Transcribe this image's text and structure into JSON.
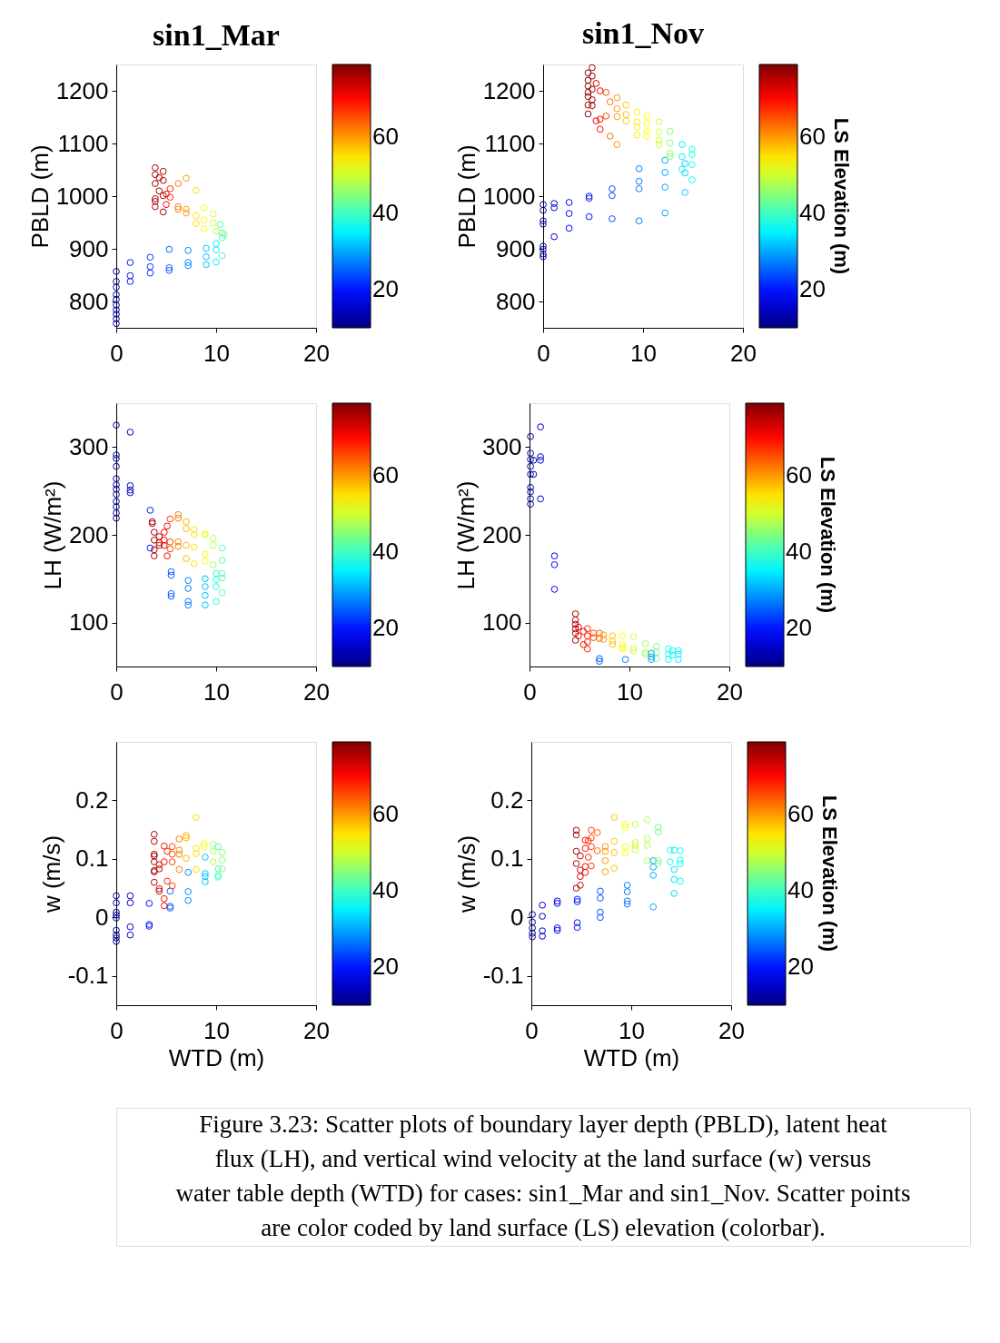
{
  "chart_data": [
    {
      "type": "scatter",
      "title": "sin1_Mar",
      "ylabel": "PBLD (m)",
      "marker": "circle",
      "xlim": [
        0,
        20
      ],
      "xticks": [
        0,
        10,
        20
      ],
      "ylim": [
        750,
        1250
      ],
      "yticks": [
        800,
        900,
        1000,
        1100,
        1200
      ],
      "clim": [
        10,
        79
      ],
      "cticks": [
        20,
        40,
        60
      ],
      "x": [
        0,
        0,
        0,
        0,
        0,
        0,
        0,
        0,
        0,
        0,
        1.4,
        1.4,
        1.4,
        3.4,
        3.4,
        3.4,
        5.3,
        5.3,
        5.3,
        7.2,
        7.2,
        7.2,
        9,
        9,
        9,
        10,
        10,
        10,
        10.6,
        10.6,
        10.6,
        10.4,
        10.8,
        9.7,
        9.7,
        8.8,
        8.8,
        8.8,
        10,
        8,
        8,
        8,
        7,
        7,
        7,
        6.2,
        6.2,
        6.2,
        5.4,
        5.4,
        5,
        5,
        3.9,
        3.9,
        3.9,
        3.9,
        3.9,
        3.9,
        4.3,
        4.3,
        4.7,
        4.7,
        4.7,
        4.7
      ],
      "values": [
        857,
        838,
        827,
        813,
        804,
        793,
        784,
        776,
        767,
        758,
        874,
        849,
        838,
        884,
        866,
        854,
        899,
        864,
        859,
        897,
        874,
        868,
        901,
        885,
        870,
        910,
        898,
        875,
        921,
        930,
        887,
        946,
        927,
        966,
        949,
        978,
        955,
        938,
        933,
        1011,
        963,
        948,
        1034,
        975,
        968,
        1024,
        980,
        975,
        1014,
        998,
        1004,
        984,
        1054,
        1041,
        1024,
        995,
        990,
        980,
        1035,
        1010,
        1047,
        1030,
        970,
        1001
      ],
      "cvalues": [
        12,
        12,
        12,
        12,
        12,
        12,
        12,
        12,
        12,
        12,
        20,
        20,
        20,
        22,
        22,
        22,
        25,
        25,
        25,
        28,
        28,
        28,
        32,
        32,
        32,
        35,
        35,
        35,
        40,
        40,
        40,
        42,
        45,
        50,
        50,
        52,
        52,
        52,
        48,
        55,
        55,
        55,
        60,
        60,
        60,
        62,
        62,
        62,
        68,
        68,
        70,
        70,
        76,
        76,
        76,
        76,
        76,
        76,
        76,
        76,
        76,
        76,
        76,
        76
      ]
    },
    {
      "type": "scatter",
      "title": "sin1_Nov",
      "ylabel": "PBLD (m)",
      "clabel": "LS Elevation (m)",
      "marker": "circle",
      "xlim": [
        0,
        20
      ],
      "xticks": [
        0,
        10,
        20
      ],
      "ylim": [
        750,
        1250
      ],
      "yticks": [
        800,
        900,
        1000,
        1100,
        1200
      ],
      "clim": [
        10,
        79
      ],
      "cticks": [
        20,
        40,
        60
      ],
      "x": [
        0,
        0,
        0,
        0,
        0,
        0,
        0,
        0,
        1.1,
        1.1,
        1.1,
        2.6,
        2.6,
        2.6,
        4.6,
        4.6,
        4.6,
        6.9,
        6.9,
        6.9,
        9.6,
        9.6,
        9.6,
        9.6,
        12.2,
        12.2,
        12.2,
        12.2,
        14.2,
        14.2,
        14.2,
        13.9,
        13.9,
        13.9,
        14.9,
        14.9,
        14.9,
        14.9,
        12.7,
        12.7,
        12.7,
        12.7,
        11.6,
        11.6,
        11.6,
        11.6,
        10.4,
        10.4,
        10.4,
        10.4,
        9.4,
        9.4,
        9.4,
        9.4,
        8.3,
        8.3,
        8.3,
        7.4,
        7.4,
        7.4,
        7.4,
        6.7,
        6.7,
        6.3,
        6.3,
        5.7,
        5.7,
        5.7,
        5.3,
        5.3,
        4.9,
        4.9,
        4.9,
        4.9,
        4.9,
        4.5,
        4.5,
        4.5,
        4.5,
        4.5,
        4.5,
        4.5
      ],
      "values": [
        984,
        973,
        953,
        947,
        905,
        899,
        890,
        885,
        986,
        978,
        923,
        988,
        967,
        939,
        996,
        1000,
        961,
        1014,
        1001,
        957,
        1052,
        1028,
        1014,
        953,
        1068,
        1045,
        1017,
        968,
        1062,
        1044,
        1007,
        1098,
        1075,
        1051,
        1089,
        1079,
        1060,
        1031,
        1123,
        1101,
        1081,
        1075,
        1141,
        1122,
        1106,
        1098,
        1152,
        1138,
        1123,
        1114,
        1160,
        1141,
        1131,
        1116,
        1173,
        1155,
        1143,
        1187,
        1166,
        1151,
        1098,
        1179,
        1114,
        1197,
        1152,
        1200,
        1146,
        1127,
        1214,
        1143,
        1244,
        1228,
        1203,
        1183,
        1172,
        1234,
        1220,
        1209,
        1197,
        1189,
        1173,
        1156
      ],
      "cvalues": [
        12,
        12,
        12,
        12,
        12,
        12,
        12,
        12,
        15,
        15,
        15,
        18,
        18,
        18,
        20,
        20,
        20,
        24,
        24,
        24,
        27,
        27,
        27,
        27,
        30,
        30,
        30,
        30,
        33,
        33,
        33,
        35,
        35,
        35,
        37,
        37,
        37,
        37,
        45,
        45,
        45,
        45,
        50,
        50,
        50,
        50,
        53,
        53,
        53,
        53,
        54,
        54,
        54,
        54,
        57,
        57,
        57,
        60,
        60,
        60,
        60,
        63,
        63,
        65,
        65,
        70,
        70,
        70,
        72,
        72,
        77,
        77,
        77,
        77,
        77,
        78,
        78,
        78,
        78,
        78,
        78,
        78
      ]
    },
    {
      "type": "scatter",
      "ylabel": "LH (W/m²)",
      "marker": "circle",
      "xlim": [
        0,
        20
      ],
      "xticks": [
        0,
        10,
        20
      ],
      "ylim": [
        50,
        350
      ],
      "yticks": [
        100,
        200,
        300
      ],
      "clim": [
        10,
        79
      ],
      "cticks": [
        20,
        40,
        60
      ],
      "x": [
        0,
        0,
        0,
        0,
        0,
        0,
        0,
        0,
        0,
        0,
        0,
        0,
        1.4,
        1.4,
        1.4,
        1.4,
        3.4,
        3.4,
        3.6,
        3.6,
        3.8,
        3.8,
        3.8,
        3.8,
        4.3,
        4.3,
        4.3,
        4.8,
        4.8,
        4.8,
        5.1,
        5.1,
        5.4,
        5.4,
        5.4,
        5.5,
        5.5,
        5.5,
        5.5,
        6.2,
        6.2,
        6.2,
        6.2,
        7,
        7,
        7,
        7,
        7.2,
        7.2,
        7.2,
        7.2,
        7.8,
        7.8,
        7.8,
        7.8,
        8.9,
        8.9,
        8.9,
        8.9,
        8.9,
        8.9,
        8.9,
        8.9,
        9.7,
        9.7,
        9.7,
        10,
        10,
        10,
        10,
        10.6,
        10.6,
        10.6,
        10.6,
        10.6
      ],
      "values": [
        325,
        291,
        287,
        278,
        264,
        257,
        252,
        246,
        238,
        232,
        225,
        219,
        317,
        256,
        251,
        248,
        228,
        185,
        215,
        213,
        203,
        194,
        183,
        176,
        198,
        191,
        188,
        203,
        194,
        188,
        210,
        176,
        218,
        192,
        184,
        158,
        154,
        133,
        130,
        223,
        219,
        192,
        187,
        215,
        207,
        188,
        173,
        148,
        139,
        124,
        120,
        206,
        200,
        186,
        167,
        201,
        200,
        178,
        170,
        150,
        141,
        131,
        120,
        196,
        188,
        166,
        156,
        149,
        141,
        124,
        185,
        171,
        156,
        151,
        134
      ],
      "cvalues": [
        12,
        12,
        12,
        12,
        12,
        12,
        12,
        12,
        12,
        12,
        12,
        12,
        15,
        15,
        15,
        15,
        20,
        20,
        76,
        76,
        76,
        76,
        76,
        76,
        74,
        74,
        74,
        72,
        72,
        72,
        70,
        70,
        66,
        66,
        66,
        25,
        25,
        25,
        25,
        62,
        62,
        62,
        62,
        58,
        58,
        58,
        58,
        27,
        27,
        27,
        27,
        55,
        55,
        55,
        55,
        52,
        52,
        52,
        52,
        32,
        32,
        32,
        32,
        48,
        48,
        48,
        38,
        38,
        38,
        38,
        42,
        42,
        42,
        42,
        42
      ]
    },
    {
      "type": "scatter",
      "ylabel": "LH (W/m²)",
      "clabel": "LS Elevation (m)",
      "marker": "circle",
      "xlim": [
        0,
        20
      ],
      "xticks": [
        0,
        10,
        20
      ],
      "ylim": [
        50,
        350
      ],
      "yticks": [
        100,
        200,
        300
      ],
      "clim": [
        10,
        79
      ],
      "cticks": [
        20,
        40,
        60
      ],
      "x": [
        0.1,
        0.1,
        0.1,
        0.1,
        0.1,
        0.1,
        0.1,
        0.1,
        0.1,
        0.4,
        0.4,
        1.1,
        1.1,
        1.1,
        1.1,
        2.5,
        2.5,
        2.5,
        4.6,
        4.6,
        4.6,
        4.6,
        4.6,
        4.6,
        4.9,
        4.9,
        5.4,
        5.4,
        5.8,
        5.8,
        5.8,
        5.8,
        6.4,
        6.4,
        7,
        7,
        7,
        7,
        7.4,
        7.4,
        8.3,
        8.3,
        8.3,
        9.3,
        9.3,
        9.3,
        9.3,
        9.6,
        10.4,
        10.4,
        10.4,
        11.6,
        11.6,
        11.6,
        12.7,
        12.7,
        12.7,
        12.2,
        12.2,
        12.2,
        13.9,
        13.9,
        13.9,
        14.3,
        14.3,
        14.9,
        14.9,
        14.9
      ],
      "values": [
        312,
        293,
        286,
        278,
        269,
        254,
        249,
        241,
        235,
        285,
        269,
        323,
        289,
        285,
        241,
        176,
        166,
        138,
        110,
        103,
        98,
        93,
        88,
        80,
        95,
        85,
        90,
        75,
        93,
        85,
        78,
        70,
        88,
        83,
        88,
        82,
        59,
        56,
        86,
        81,
        85,
        79,
        75,
        85,
        75,
        72,
        70,
        58,
        84,
        71,
        68,
        76,
        66,
        64,
        73,
        66,
        59,
        65,
        61,
        58,
        70,
        64,
        58,
        68,
        63,
        68,
        64,
        58
      ],
      "cvalues": [
        12,
        12,
        12,
        12,
        12,
        12,
        12,
        12,
        12,
        12,
        12,
        15,
        15,
        15,
        15,
        18,
        18,
        18,
        76,
        76,
        76,
        76,
        76,
        76,
        72,
        72,
        70,
        70,
        68,
        68,
        68,
        68,
        66,
        66,
        64,
        64,
        25,
        25,
        60,
        60,
        57,
        57,
        57,
        53,
        53,
        53,
        53,
        27,
        50,
        50,
        50,
        47,
        47,
        47,
        44,
        44,
        44,
        30,
        30,
        30,
        37,
        37,
        37,
        36,
        36,
        35,
        35,
        35
      ]
    },
    {
      "type": "scatter",
      "xlabel": "WTD (m)",
      "ylabel": "w (m/s)",
      "marker": "circle",
      "xlim": [
        0,
        20
      ],
      "xticks": [
        0,
        10,
        20
      ],
      "ylim": [
        -0.15,
        0.3
      ],
      "yticks": [
        -0.1,
        0,
        0.1,
        0.2
      ],
      "clim": [
        10,
        79
      ],
      "cticks": [
        20,
        40,
        60
      ],
      "x": [
        0,
        0,
        0,
        0,
        0,
        0,
        0,
        0,
        0,
        1.4,
        1.4,
        1.4,
        1.4,
        3.3,
        3.3,
        3.3,
        3.8,
        3.8,
        3.8,
        3.8,
        3.8,
        3.8,
        3.8,
        3.8,
        4.3,
        4.3,
        4.3,
        4.3,
        4.8,
        4.8,
        4.8,
        4.8,
        5.1,
        5.1,
        5.4,
        5.4,
        5.4,
        5.6,
        5.6,
        5.6,
        5.6,
        6.3,
        6.3,
        6.3,
        6.3,
        7,
        7,
        7,
        7.2,
        7.2,
        7.2,
        8,
        8,
        8,
        8,
        8.8,
        8.8,
        8.9,
        8.9,
        8.9,
        8.9,
        9.7,
        9.7,
        9.7,
        10.2,
        10.2,
        10.2,
        10.2,
        10.6,
        10.6,
        10.6
      ],
      "values": [
        0.037,
        0.025,
        0.009,
        0.004,
        -0.001,
        -0.022,
        -0.03,
        -0.035,
        -0.041,
        0.037,
        0.025,
        -0.016,
        -0.03,
        0.024,
        -0.012,
        -0.015,
        0.142,
        0.13,
        0.108,
        0.105,
        0.095,
        0.08,
        0.078,
        0.06,
        0.09,
        0.083,
        0.049,
        0.045,
        0.122,
        0.095,
        0.032,
        0.02,
        0.113,
        0.062,
        0.045,
        0.019,
        0.016,
        0.121,
        0.108,
        0.095,
        0.054,
        0.134,
        0.115,
        0.108,
        0.082,
        0.14,
        0.136,
        0.101,
        0.077,
        0.044,
        0.029,
        0.171,
        0.118,
        0.109,
        0.082,
        0.126,
        0.121,
        0.103,
        0.075,
        0.07,
        0.061,
        0.125,
        0.113,
        0.095,
        0.121,
        0.083,
        0.072,
        0.069,
        0.111,
        0.098,
        0.083
      ],
      "cvalues": [
        12,
        12,
        12,
        12,
        12,
        12,
        12,
        12,
        12,
        15,
        15,
        15,
        15,
        20,
        20,
        20,
        76,
        76,
        76,
        76,
        76,
        76,
        76,
        76,
        74,
        74,
        74,
        74,
        70,
        70,
        70,
        70,
        68,
        68,
        25,
        25,
        25,
        66,
        66,
        66,
        66,
        62,
        62,
        62,
        62,
        58,
        58,
        58,
        28,
        28,
        28,
        55,
        55,
        55,
        55,
        52,
        52,
        32,
        32,
        32,
        32,
        48,
        48,
        48,
        40,
        40,
        40,
        40,
        45,
        45,
        45
      ]
    },
    {
      "type": "scatter",
      "xlabel": "WTD (m)",
      "ylabel": "w (m/s)",
      "clabel": "LS Elevation (m)",
      "marker": "circle",
      "xlim": [
        0,
        20
      ],
      "xticks": [
        0,
        10,
        20
      ],
      "ylim": [
        -0.15,
        0.3
      ],
      "yticks": [
        -0.1,
        0,
        0.1,
        0.2
      ],
      "clim": [
        10,
        79
      ],
      "cticks": [
        20,
        40,
        60
      ],
      "annotations": [
        "Figure 3.23: Scatter plots of boundary layer depth (PBLD), latent heat flux (LH), and vertical wind velocity at the land surface (w) versus water table depth (WTD) for cases: sin1_Mar and sin1_Nov. Scatter points are color coded by land surface (LS) elevation (colorbar)."
      ],
      "x": [
        0.1,
        0.1,
        0.1,
        0.1,
        0.1,
        1.1,
        1.1,
        1.1,
        1.1,
        2.6,
        2.6,
        2.6,
        2.6,
        4.6,
        4.6,
        4.6,
        4.6,
        4.5,
        4.5,
        4.5,
        4.5,
        4.5,
        4.9,
        4.9,
        4.9,
        4.9,
        5.4,
        5.4,
        5.4,
        5.4,
        5.7,
        5.7,
        6,
        6,
        6,
        6,
        6.6,
        6.6,
        6.9,
        6.9,
        6.9,
        6.9,
        7.4,
        7.4,
        7.4,
        7.4,
        8.3,
        8.3,
        8.3,
        8.3,
        9.4,
        9.4,
        9.4,
        9.4,
        9.6,
        9.6,
        9.6,
        9.6,
        10.4,
        10.4,
        10.4,
        10.4,
        11.6,
        11.6,
        11.6,
        11.6,
        12.2,
        12.2,
        12.2,
        12.2,
        12.7,
        12.7,
        12.7,
        12.7,
        13.9,
        13.9,
        14.3,
        14.3,
        14.3,
        14.3,
        14.9,
        14.9,
        14.9,
        14.9
      ],
      "values": [
        0.005,
        -0.008,
        -0.018,
        -0.027,
        -0.033,
        0.021,
        0.002,
        -0.023,
        -0.032,
        0.028,
        0.024,
        -0.018,
        -0.022,
        0.031,
        0.027,
        -0.009,
        -0.017,
        0.149,
        0.141,
        0.113,
        0.092,
        0.05,
        0.105,
        0.081,
        0.07,
        0.055,
        0.132,
        0.118,
        0.087,
        0.077,
        0.131,
        0.103,
        0.149,
        0.136,
        0.121,
        0.088,
        0.145,
        0.114,
        0.045,
        0.033,
        0.009,
        0,
        0.121,
        0.113,
        0.097,
        0.078,
        0.171,
        0.13,
        0.111,
        0.084,
        0.159,
        0.154,
        0.121,
        0.11,
        0.055,
        0.044,
        0.028,
        0.023,
        0.159,
        0.128,
        0.123,
        0.116,
        0.167,
        0.135,
        0.123,
        0.097,
        0.097,
        0.086,
        0.072,
        0.018,
        0.154,
        0.146,
        0.097,
        0.092,
        0.115,
        0.095,
        0.115,
        0.082,
        0.065,
        0.041,
        0.114,
        0.098,
        0.092,
        0.062
      ],
      "cvalues": [
        12,
        12,
        12,
        12,
        12,
        15,
        15,
        15,
        15,
        18,
        18,
        18,
        18,
        20,
        20,
        20,
        20,
        76,
        76,
        76,
        76,
        76,
        74,
        74,
        74,
        74,
        70,
        70,
        70,
        70,
        68,
        68,
        66,
        66,
        66,
        66,
        63,
        63,
        24,
        24,
        24,
        24,
        60,
        60,
        60,
        60,
        57,
        57,
        57,
        57,
        53,
        53,
        53,
        53,
        27,
        27,
        27,
        27,
        50,
        50,
        50,
        50,
        48,
        48,
        48,
        48,
        30,
        30,
        30,
        30,
        44,
        44,
        44,
        44,
        37,
        37,
        34,
        34,
        34,
        34,
        36,
        36,
        36,
        36
      ]
    }
  ]
}
